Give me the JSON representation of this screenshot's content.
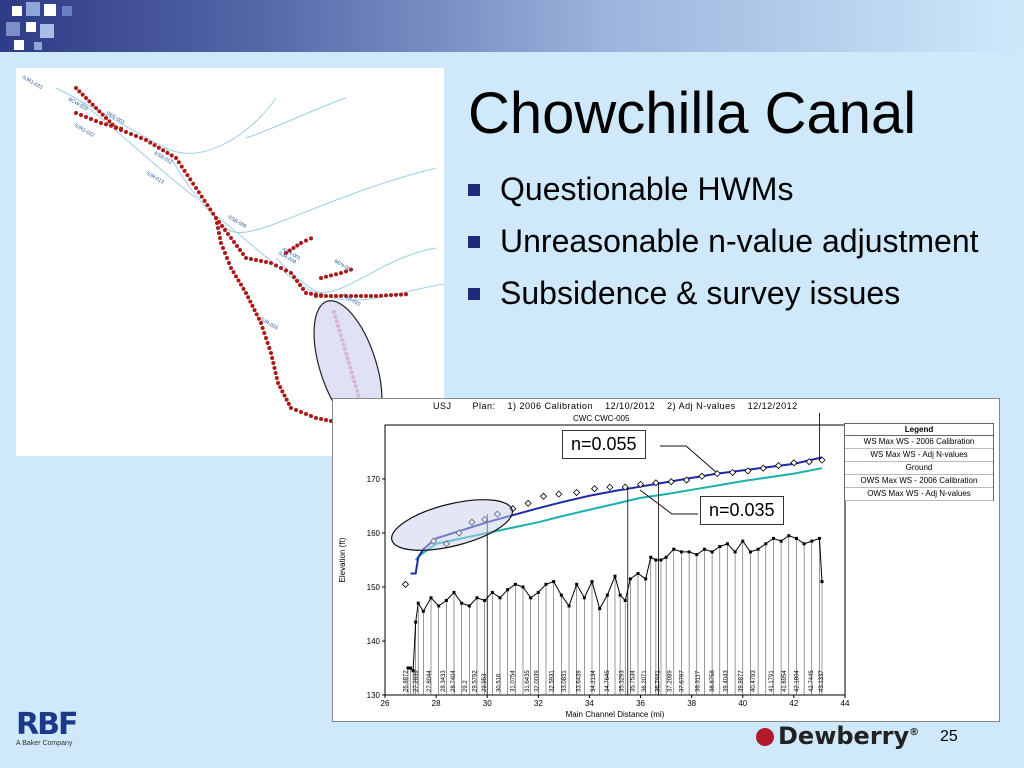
{
  "slide": {
    "title": "Chowchilla Canal",
    "bullets": [
      "Questionable HWMs",
      "Unreasonable n-value adjustment",
      "Subsidence & survey issues"
    ],
    "page_number": "25",
    "footer_logo_text": "RBF",
    "footer_logo_sub": "A Baker Company",
    "sponsor_text": "Dewberry",
    "sponsor_mark": "®"
  },
  "map": {
    "labels": [
      "SJR1-023",
      "BCW-003",
      "DEE-001",
      "SJR1-022",
      "ESB-012",
      "SJR-013",
      "ESB-009",
      "ASH-001",
      "BEN-007",
      "SJR-009",
      "FBR-010",
      "SJR-005",
      "SJR-004"
    ],
    "colors": {
      "marker": "#b01818",
      "river": "#9ecfe6",
      "highlight": "#e8a0a8"
    }
  },
  "callouts": {
    "upper": "n=0.055",
    "lower": "n=0.035"
  },
  "chart_data": {
    "type": "line",
    "header": "USJ       Plan:    1) 2006 Calibration    12/10/2012    2) Adj N-values    12/12/2012",
    "subtitle": "CWC CWC-005",
    "xlabel": "Main Channel Distance (mi)",
    "ylabel": "Elevation (ft)",
    "xlim": [
      26,
      44
    ],
    "ylim": [
      130,
      180
    ],
    "x_ticks": [
      26,
      28,
      30,
      32,
      34,
      36,
      38,
      40,
      42,
      44
    ],
    "y_ticks": [
      130,
      140,
      150,
      160,
      170
    ],
    "legend": {
      "title": "Legend",
      "entries": [
        {
          "name": "WS  Max WS - 2006 Calibration",
          "color": "#1ab0b0",
          "style": "line"
        },
        {
          "name": "WS  Max WS - Adj N-values",
          "color": "#1e2aa8",
          "style": "line"
        },
        {
          "name": "Ground",
          "color": "#000000",
          "style": "marker-line"
        },
        {
          "name": "OWS  Max WS - 2006 Calibration",
          "color": "#000000",
          "style": "diamond"
        },
        {
          "name": "OWS  Max WS - Adj N-values",
          "color": "#000000",
          "style": "diamond"
        }
      ]
    },
    "series": [
      {
        "name": "WS  Max WS - 2006 Calibration",
        "color": "#1ab0b0",
        "x": [
          27.2,
          27.4,
          28,
          29,
          30,
          31,
          32,
          33,
          34,
          35,
          36,
          37,
          38,
          39,
          40,
          41,
          42,
          43.1
        ],
        "y": [
          155,
          156,
          158,
          159,
          160,
          161,
          162,
          163.2,
          164.3,
          165.4,
          166.5,
          167.2,
          168,
          168.8,
          169.6,
          170.3,
          171,
          172
        ]
      },
      {
        "name": "WS  Max WS - Adj N-values",
        "color": "#1e2aa8",
        "x": [
          27,
          27.2,
          27.3,
          27.5,
          28,
          29,
          30,
          31,
          32,
          33,
          34,
          35,
          36,
          37,
          38,
          39,
          40,
          41,
          42,
          43.1
        ],
        "y": [
          152.5,
          152.5,
          155.5,
          157,
          159,
          160.5,
          162,
          163.3,
          164.6,
          165.8,
          166.9,
          167.8,
          168.6,
          169.4,
          170.2,
          171,
          171.6,
          172.2,
          172.8,
          174
        ]
      },
      {
        "name": "Ground",
        "color": "#000000",
        "x": [
          26.9,
          27.0,
          27.1,
          27.2,
          27.3,
          27.5,
          27.8,
          28.1,
          28.4,
          28.7,
          29.0,
          29.3,
          29.6,
          29.9,
          30.2,
          30.5,
          30.8,
          31.1,
          31.4,
          31.7,
          32.0,
          32.3,
          32.6,
          32.9,
          33.2,
          33.5,
          33.8,
          34.1,
          34.4,
          34.7,
          35.0,
          35.2,
          35.4,
          35.6,
          35.9,
          36.2,
          36.4,
          36.6,
          36.8,
          37.0,
          37.3,
          37.6,
          37.9,
          38.2,
          38.5,
          38.8,
          39.1,
          39.4,
          39.7,
          40.0,
          40.3,
          40.6,
          40.9,
          41.2,
          41.5,
          41.8,
          42.1,
          42.4,
          42.7,
          43.0,
          43.1
        ],
        "y": [
          135,
          135,
          134.5,
          143.5,
          147,
          145.5,
          148,
          146.5,
          147.5,
          149,
          147,
          146.5,
          148,
          147.5,
          149,
          148,
          149.5,
          150.5,
          150,
          148,
          149,
          150.5,
          151,
          148.5,
          146.5,
          150.5,
          148,
          151,
          146,
          148.5,
          152,
          148.5,
          147.5,
          151.5,
          152.5,
          151.5,
          155.5,
          155,
          155,
          155.5,
          157,
          156.5,
          156.5,
          156,
          157,
          156.5,
          157.5,
          158,
          156.5,
          158.5,
          156.5,
          157,
          158,
          159,
          158.5,
          159.5,
          159,
          158,
          158.5,
          159,
          151
        ]
      },
      {
        "name": "OWS  Max WS - 2006 Calibration",
        "color": "#000000",
        "style": "diamond",
        "x": [
          26.8,
          27.9,
          28.4,
          28.9,
          29.4,
          29.9,
          30.4,
          31,
          31.6,
          32.2,
          32.8,
          33.5,
          34.2,
          34.8,
          35.4,
          36,
          36.6,
          37.2,
          37.8,
          38.4,
          39,
          39.6,
          40.2,
          40.8,
          41.4,
          42,
          42.6,
          43.1
        ],
        "y": [
          150.5,
          158.5,
          158,
          160,
          162,
          162.5,
          163.5,
          164.5,
          165.5,
          166.8,
          167.2,
          167.5,
          168.2,
          168.5,
          168.5,
          169,
          169.3,
          169.5,
          169.8,
          170.5,
          171,
          171.2,
          171.5,
          172,
          172.5,
          173,
          173.2,
          173.5
        ]
      }
    ],
    "hwm_labels": [
      "26.8872",
      "27.2839",
      "27.8044",
      "28.3433",
      "28.7404",
      "29.2",
      "29.5792",
      "29.953",
      "30.516",
      "31.0754",
      "31.6435",
      "32.0039",
      "32.5931",
      "33.0831",
      "33.6439",
      "34.2134",
      "34.7645",
      "35.3293",
      "35.7534",
      "36.2071",
      "36.7441",
      "37.2089",
      "37.6797",
      "38.3117",
      "38.8758",
      "39.4043",
      "39.9877",
      "40.4793",
      "41.1791",
      "41.6954",
      "42.1804",
      "42.7445",
      "43.1337"
    ]
  }
}
